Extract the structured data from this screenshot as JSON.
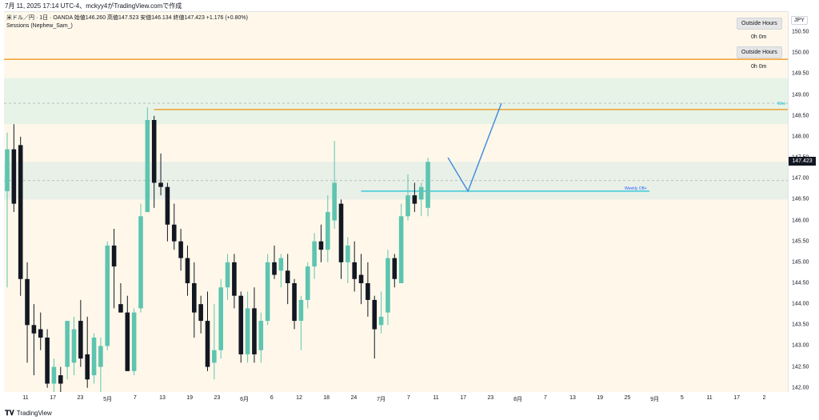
{
  "header": {
    "timestamp_line": "7月 11, 2025 17:14 UTC-4、mckyy4がTradingView.comで作成",
    "legend_line1": "米ドル／円 · 1日 · OANDA  始値146.260  高値147.523  安値146.134  終値147.423  +1.176 (+0.80%)",
    "legend_line2": "Sessions (Nephew_Sam_)"
  },
  "axis": {
    "currency": "JPY",
    "current_price": "147.423"
  },
  "sessions_widget": {
    "button1": "Outside Hours",
    "value1": "0h 0m",
    "button2": "Outside Hours",
    "value2": "0h 0m"
  },
  "annotations": {
    "weekly_ob": "Weekly OB+",
    "weekly_tag": "Wee"
  },
  "footer": {
    "brand": "TradingView"
  },
  "chart_data": {
    "type": "candlestick",
    "symbol": "USDJPY",
    "timeframe": "1D",
    "ylim": [
      141.9,
      151.0
    ],
    "price_ticks": [
      "150.50",
      "150.00",
      "149.50",
      "149.00",
      "148.50",
      "148.00",
      "147.50",
      "147.00",
      "146.50",
      "146.00",
      "145.50",
      "145.00",
      "144.50",
      "144.00",
      "143.50",
      "143.00",
      "142.50",
      "142.00"
    ],
    "date_ticks": [
      "11",
      "17",
      "23",
      "5月",
      "7",
      "13",
      "19",
      "23",
      "6月",
      "6",
      "12",
      "18",
      "24",
      "7月",
      "7",
      "11",
      "17",
      "23",
      "8月",
      "7",
      "13",
      "19",
      "25",
      "9月",
      "5",
      "11",
      "17",
      "2"
    ],
    "colors": {
      "up": "#5ec4b0",
      "down": "#131722",
      "background": "#fff8ea",
      "hline": "#f0a030",
      "ob_line": "#00bcd4",
      "projection": "#4a8fdc"
    },
    "candles": [
      {
        "o": 146.7,
        "h": 148.1,
        "l": 144.4,
        "c": 147.7
      },
      {
        "o": 147.7,
        "h": 148.3,
        "l": 146.2,
        "c": 146.4
      },
      {
        "o": 147.8,
        "h": 148.0,
        "l": 144.2,
        "c": 144.6
      },
      {
        "o": 144.6,
        "h": 145.0,
        "l": 142.6,
        "c": 143.5
      },
      {
        "o": 143.5,
        "h": 144.0,
        "l": 142.3,
        "c": 143.3
      },
      {
        "o": 143.4,
        "h": 143.8,
        "l": 142.9,
        "c": 143.2
      },
      {
        "o": 143.2,
        "h": 143.4,
        "l": 142.0,
        "c": 142.1
      },
      {
        "o": 142.1,
        "h": 142.7,
        "l": 141.9,
        "c": 142.5
      },
      {
        "o": 142.3,
        "h": 142.5,
        "l": 141.9,
        "c": 142.1
      },
      {
        "o": 142.5,
        "h": 143.6,
        "l": 142.2,
        "c": 143.6
      },
      {
        "o": 142.6,
        "h": 143.7,
        "l": 142.3,
        "c": 143.4
      },
      {
        "o": 143.6,
        "h": 144.1,
        "l": 142.5,
        "c": 142.7
      },
      {
        "o": 142.8,
        "h": 143.7,
        "l": 142.0,
        "c": 142.2
      },
      {
        "o": 142.3,
        "h": 143.3,
        "l": 142.1,
        "c": 143.2
      },
      {
        "o": 142.5,
        "h": 143.2,
        "l": 141.9,
        "c": 143.0
      },
      {
        "o": 143.0,
        "h": 145.5,
        "l": 142.9,
        "c": 145.4
      },
      {
        "o": 145.4,
        "h": 145.8,
        "l": 143.9,
        "c": 144.9
      },
      {
        "o": 144.0,
        "h": 144.5,
        "l": 143.8,
        "c": 143.8
      },
      {
        "o": 143.8,
        "h": 144.2,
        "l": 142.4,
        "c": 142.4
      },
      {
        "o": 142.4,
        "h": 143.9,
        "l": 142.3,
        "c": 143.8
      },
      {
        "o": 143.9,
        "h": 146.4,
        "l": 143.8,
        "c": 146.1
      },
      {
        "o": 146.2,
        "h": 148.7,
        "l": 146.2,
        "c": 148.4
      },
      {
        "o": 148.4,
        "h": 148.5,
        "l": 146.3,
        "c": 146.9
      },
      {
        "o": 146.9,
        "h": 147.6,
        "l": 146.6,
        "c": 146.8
      },
      {
        "o": 146.8,
        "h": 146.9,
        "l": 145.5,
        "c": 145.9
      },
      {
        "o": 145.9,
        "h": 146.4,
        "l": 145.3,
        "c": 145.5
      },
      {
        "o": 145.5,
        "h": 145.8,
        "l": 144.8,
        "c": 145.1
      },
      {
        "o": 145.1,
        "h": 145.4,
        "l": 144.2,
        "c": 144.5
      },
      {
        "o": 144.5,
        "h": 145.0,
        "l": 143.2,
        "c": 143.8
      },
      {
        "o": 144.0,
        "h": 144.2,
        "l": 143.3,
        "c": 143.6
      },
      {
        "o": 143.6,
        "h": 144.3,
        "l": 142.4,
        "c": 142.5
      },
      {
        "o": 142.6,
        "h": 144.0,
        "l": 142.2,
        "c": 142.9
      },
      {
        "o": 142.9,
        "h": 144.6,
        "l": 142.7,
        "c": 144.4
      },
      {
        "o": 144.4,
        "h": 145.2,
        "l": 144.1,
        "c": 145.0
      },
      {
        "o": 145.0,
        "h": 145.2,
        "l": 143.9,
        "c": 144.2
      },
      {
        "o": 144.2,
        "h": 144.3,
        "l": 142.6,
        "c": 142.8
      },
      {
        "o": 142.8,
        "h": 144.3,
        "l": 142.6,
        "c": 143.9
      },
      {
        "o": 143.9,
        "h": 144.4,
        "l": 142.6,
        "c": 142.8
      },
      {
        "o": 142.9,
        "h": 143.8,
        "l": 142.6,
        "c": 143.6
      },
      {
        "o": 143.6,
        "h": 145.2,
        "l": 143.5,
        "c": 145.0
      },
      {
        "o": 145.0,
        "h": 145.4,
        "l": 144.6,
        "c": 144.7
      },
      {
        "o": 144.8,
        "h": 145.2,
        "l": 144.4,
        "c": 145.1
      },
      {
        "o": 144.8,
        "h": 145.2,
        "l": 144.0,
        "c": 144.5
      },
      {
        "o": 144.5,
        "h": 144.6,
        "l": 143.4,
        "c": 143.6
      },
      {
        "o": 143.6,
        "h": 144.2,
        "l": 142.9,
        "c": 144.1
      },
      {
        "o": 144.1,
        "h": 145.0,
        "l": 143.9,
        "c": 144.9
      },
      {
        "o": 144.9,
        "h": 145.7,
        "l": 144.6,
        "c": 145.5
      },
      {
        "o": 145.5,
        "h": 145.9,
        "l": 145.0,
        "c": 145.3
      },
      {
        "o": 145.3,
        "h": 146.6,
        "l": 145.0,
        "c": 146.2
      },
      {
        "o": 146.0,
        "h": 147.9,
        "l": 145.8,
        "c": 146.9
      },
      {
        "o": 146.4,
        "h": 146.5,
        "l": 144.6,
        "c": 145.0
      },
      {
        "o": 145.0,
        "h": 145.6,
        "l": 144.5,
        "c": 145.4
      },
      {
        "o": 145.0,
        "h": 145.5,
        "l": 144.3,
        "c": 144.6
      },
      {
        "o": 144.7,
        "h": 145.2,
        "l": 144.0,
        "c": 144.5
      },
      {
        "o": 144.5,
        "h": 145.0,
        "l": 143.7,
        "c": 144.1
      },
      {
        "o": 144.1,
        "h": 144.2,
        "l": 142.7,
        "c": 143.4
      },
      {
        "o": 143.5,
        "h": 144.3,
        "l": 143.3,
        "c": 143.7
      },
      {
        "o": 143.8,
        "h": 145.3,
        "l": 143.5,
        "c": 145.1
      },
      {
        "o": 145.1,
        "h": 145.2,
        "l": 144.4,
        "c": 144.6
      },
      {
        "o": 144.5,
        "h": 146.4,
        "l": 144.5,
        "c": 146.1
      },
      {
        "o": 146.1,
        "h": 147.1,
        "l": 146.0,
        "c": 146.6
      },
      {
        "o": 146.6,
        "h": 146.9,
        "l": 146.2,
        "c": 146.4
      },
      {
        "o": 146.5,
        "h": 146.9,
        "l": 146.1,
        "c": 146.8
      },
      {
        "o": 146.3,
        "h": 147.5,
        "l": 146.1,
        "c": 147.4
      }
    ],
    "levels": {
      "upper_orange": 149.85,
      "orange": 148.65,
      "dashed_upper": 148.8,
      "dashed_lower": 146.95,
      "weekly_ob": 146.7,
      "zone_upper": [
        148.3,
        149.4
      ],
      "zone_lower": [
        146.5,
        147.4
      ]
    },
    "projection": [
      {
        "bar": 66,
        "price": 147.5
      },
      {
        "bar": 69,
        "price": 146.7
      },
      {
        "bar": 74,
        "price": 148.8
      }
    ]
  }
}
